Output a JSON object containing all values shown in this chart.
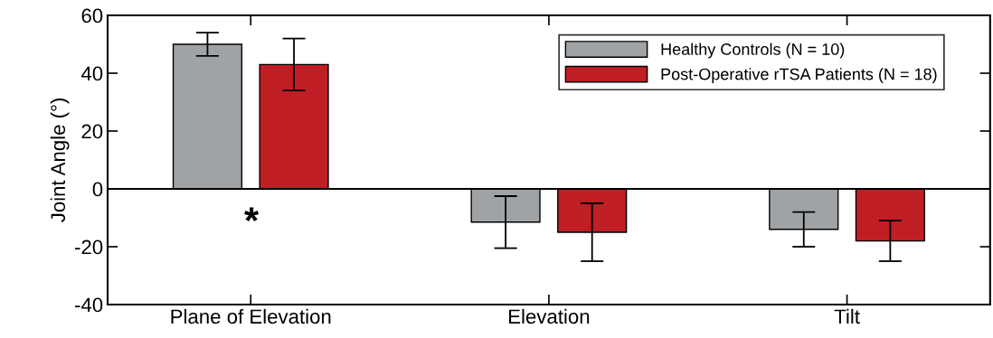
{
  "chart_data": {
    "type": "bar",
    "ylabel": "Joint Angle (°)",
    "categories": [
      "Plane of Elevation",
      "Elevation",
      "Tilt"
    ],
    "series": [
      {
        "name": "Healthy Controls (N = 10)",
        "color": "#a0a3a5",
        "values": [
          50,
          -11.5,
          -14
        ],
        "errors": [
          4,
          9,
          6
        ]
      },
      {
        "name": "Post-Operative rTSA Patients (N = 18)",
        "color": "#be1e24",
        "values": [
          43,
          -15,
          -18
        ],
        "errors": [
          9,
          10,
          7
        ]
      }
    ],
    "ylim": [
      -40,
      60
    ],
    "yticks": [
      -40,
      -20,
      0,
      20,
      40,
      60
    ],
    "ref_lines": [
      {
        "axis": "y",
        "value": 0,
        "color": "#000000"
      }
    ],
    "annotations": [
      "*"
    ],
    "legend": "top right",
    "grid": false
  }
}
